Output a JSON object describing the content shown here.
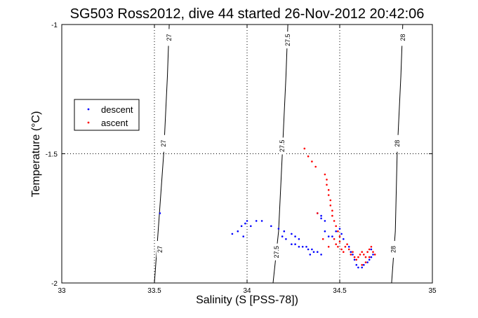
{
  "chart_data": {
    "type": "scatter",
    "title": "SG503 Ross2012, dive 44 started 26-Nov-2012 20:42:06",
    "xlabel": "Salinity (S [PSS-78])",
    "ylabel": "Temperature (°C)",
    "xlim": [
      33,
      35
    ],
    "ylim": [
      -2,
      -1
    ],
    "xticks": [
      "33",
      "33.5",
      "34",
      "34.5",
      "35"
    ],
    "yticks": [
      "-1",
      "-1.5",
      "-2"
    ],
    "grid": true,
    "legend_position": "left",
    "contours": [
      {
        "label": "27",
        "points": [
          [
            33.5,
            -2.0
          ],
          [
            33.52,
            -1.8
          ],
          [
            33.55,
            -1.5
          ],
          [
            33.57,
            -1.2
          ],
          [
            33.58,
            -1.0
          ]
        ]
      },
      {
        "label": "27.5",
        "points": [
          [
            34.14,
            -2.0
          ],
          [
            34.17,
            -1.8
          ],
          [
            34.19,
            -1.5
          ],
          [
            34.21,
            -1.2
          ],
          [
            34.22,
            -1.0
          ]
        ]
      },
      {
        "label": "28",
        "points": [
          [
            34.78,
            -2.0
          ],
          [
            34.8,
            -1.8
          ],
          [
            34.81,
            -1.5
          ],
          [
            34.83,
            -1.2
          ],
          [
            34.84,
            -1.0
          ]
        ]
      }
    ],
    "contour_label_positions": [
      {
        "label": "27",
        "x": 33.58,
        "y": -1.05
      },
      {
        "label": "27",
        "x": 33.55,
        "y": -1.46
      },
      {
        "label": "27",
        "x": 33.53,
        "y": -1.87
      },
      {
        "label": "27.5",
        "x": 34.22,
        "y": -1.06
      },
      {
        "label": "27.5",
        "x": 34.19,
        "y": -1.47
      },
      {
        "label": "27.5",
        "x": 34.16,
        "y": -1.88
      },
      {
        "label": "28",
        "x": 34.84,
        "y": -1.05
      },
      {
        "label": "28",
        "x": 34.81,
        "y": -1.46
      },
      {
        "label": "28",
        "x": 34.79,
        "y": -1.87
      }
    ],
    "series": [
      {
        "name": "descent",
        "color": "#0000ff",
        "points": [
          [
            33.53,
            -1.73
          ],
          [
            33.92,
            -1.81
          ],
          [
            33.95,
            -1.8
          ],
          [
            33.97,
            -1.78
          ],
          [
            33.99,
            -1.77
          ],
          [
            34.0,
            -1.76
          ],
          [
            34.02,
            -1.78
          ],
          [
            33.98,
            -1.82
          ],
          [
            34.05,
            -1.76
          ],
          [
            34.08,
            -1.76
          ],
          [
            34.13,
            -1.78
          ],
          [
            34.17,
            -1.79
          ],
          [
            34.2,
            -1.8
          ],
          [
            34.19,
            -1.82
          ],
          [
            34.21,
            -1.83
          ],
          [
            34.24,
            -1.85
          ],
          [
            34.26,
            -1.85
          ],
          [
            34.28,
            -1.86
          ],
          [
            34.3,
            -1.86
          ],
          [
            34.32,
            -1.86
          ],
          [
            34.33,
            -1.87
          ],
          [
            34.35,
            -1.87
          ],
          [
            34.36,
            -1.88
          ],
          [
            34.34,
            -1.89
          ],
          [
            34.38,
            -1.88
          ],
          [
            34.4,
            -1.89
          ],
          [
            34.24,
            -1.81
          ],
          [
            34.26,
            -1.82
          ],
          [
            34.28,
            -1.83
          ],
          [
            34.38,
            -1.73
          ],
          [
            34.4,
            -1.75
          ],
          [
            34.42,
            -1.76
          ],
          [
            34.4,
            -1.74
          ],
          [
            34.42,
            -1.8
          ],
          [
            34.44,
            -1.82
          ],
          [
            34.46,
            -1.82
          ],
          [
            34.48,
            -1.8
          ],
          [
            34.5,
            -1.79
          ],
          [
            34.51,
            -1.81
          ],
          [
            34.52,
            -1.83
          ],
          [
            34.55,
            -1.86
          ],
          [
            34.56,
            -1.88
          ],
          [
            34.57,
            -1.89
          ],
          [
            34.58,
            -1.91
          ],
          [
            34.59,
            -1.93
          ],
          [
            34.6,
            -1.94
          ],
          [
            34.62,
            -1.94
          ],
          [
            34.63,
            -1.93
          ],
          [
            34.65,
            -1.92
          ],
          [
            34.66,
            -1.91
          ],
          [
            34.67,
            -1.9
          ],
          [
            34.68,
            -1.89
          ],
          [
            34.67,
            -1.87
          ]
        ]
      },
      {
        "name": "ascent",
        "color": "#ff0000",
        "points": [
          [
            34.31,
            -1.48
          ],
          [
            34.33,
            -1.51
          ],
          [
            34.35,
            -1.53
          ],
          [
            34.37,
            -1.55
          ],
          [
            34.42,
            -1.58
          ],
          [
            34.43,
            -1.6
          ],
          [
            34.43,
            -1.62
          ],
          [
            34.44,
            -1.64
          ],
          [
            34.44,
            -1.66
          ],
          [
            34.45,
            -1.68
          ],
          [
            34.45,
            -1.7
          ],
          [
            34.46,
            -1.72
          ],
          [
            34.46,
            -1.74
          ],
          [
            34.47,
            -1.76
          ],
          [
            34.48,
            -1.78
          ],
          [
            34.49,
            -1.8
          ],
          [
            34.5,
            -1.82
          ],
          [
            34.5,
            -1.84
          ],
          [
            34.47,
            -1.83
          ],
          [
            34.48,
            -1.85
          ],
          [
            34.49,
            -1.86
          ],
          [
            34.51,
            -1.87
          ],
          [
            34.52,
            -1.88
          ],
          [
            34.53,
            -1.86
          ],
          [
            34.54,
            -1.85
          ],
          [
            34.55,
            -1.87
          ],
          [
            34.56,
            -1.89
          ],
          [
            34.57,
            -1.88
          ],
          [
            34.58,
            -1.9
          ],
          [
            34.59,
            -1.91
          ],
          [
            34.6,
            -1.9
          ],
          [
            34.61,
            -1.89
          ],
          [
            34.62,
            -1.88
          ],
          [
            34.63,
            -1.89
          ],
          [
            34.64,
            -1.9
          ],
          [
            34.65,
            -1.88
          ],
          [
            34.66,
            -1.87
          ],
          [
            34.67,
            -1.86
          ],
          [
            34.68,
            -1.88
          ],
          [
            34.69,
            -1.89
          ],
          [
            34.66,
            -1.9
          ],
          [
            34.64,
            -1.92
          ],
          [
            34.62,
            -1.93
          ],
          [
            34.38,
            -1.73
          ],
          [
            34.41,
            -1.83
          ],
          [
            34.44,
            -1.86
          ]
        ]
      }
    ]
  }
}
